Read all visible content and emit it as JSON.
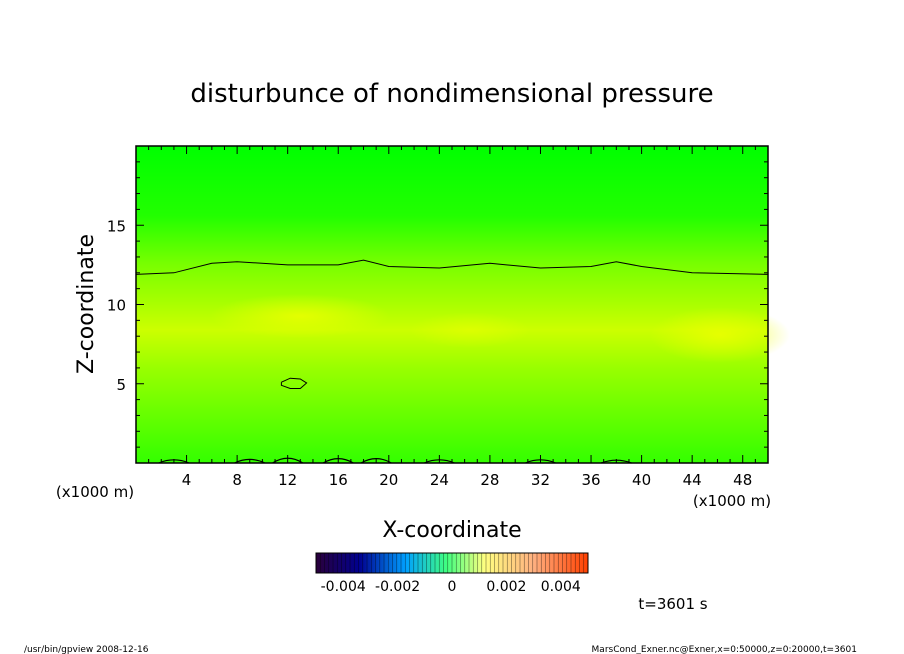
{
  "chart_data": {
    "type": "heatmap",
    "title": "disturbunce of nondimensional pressure",
    "xlabel": "X-coordinate",
    "ylabel": "Z-coordinate",
    "x_unit": "(x1000 m)",
    "y_unit": "(x1000 m)",
    "xlim": [
      0,
      50
    ],
    "ylim": [
      0,
      20
    ],
    "x_ticks": [
      "4",
      "8",
      "12",
      "16",
      "20",
      "24",
      "28",
      "32",
      "36",
      "40",
      "44",
      "48"
    ],
    "y_ticks": [
      "5",
      "10",
      "15"
    ],
    "x_tick_values": [
      4,
      8,
      12,
      16,
      20,
      24,
      28,
      32,
      36,
      40,
      44,
      48
    ],
    "y_tick_values": [
      5,
      10,
      15
    ],
    "colorbar": {
      "range": [
        -0.005,
        0.005
      ],
      "tick_labels": [
        "-0.004",
        "-0.002",
        "0",
        "0.002",
        "0.004"
      ]
    },
    "contours": [
      {
        "level": 0,
        "points": [
          [
            0,
            11.9
          ],
          [
            3,
            12.0
          ],
          [
            6,
            12.6
          ],
          [
            8,
            12.7
          ],
          [
            12,
            12.5
          ],
          [
            16,
            12.5
          ],
          [
            18,
            12.8
          ],
          [
            20,
            12.4
          ],
          [
            24,
            12.3
          ],
          [
            28,
            12.6
          ],
          [
            32,
            12.3
          ],
          [
            36,
            12.4
          ],
          [
            38,
            12.7
          ],
          [
            40,
            12.4
          ],
          [
            44,
            12.0
          ],
          [
            50,
            11.9
          ]
        ]
      },
      {
        "level": 0,
        "points": [
          [
            11.5,
            5.1
          ],
          [
            12.2,
            5.35
          ],
          [
            13.0,
            5.3
          ],
          [
            13.5,
            5.05
          ],
          [
            13.0,
            4.7
          ],
          [
            12.2,
            4.7
          ],
          [
            11.5,
            4.9
          ],
          [
            11.5,
            5.1
          ]
        ]
      }
    ],
    "time_label": "t=3601 s"
  },
  "footer": {
    "left": "/usr/bin/gpview   2008-12-16",
    "right": "MarsCond_Exner.nc@Exner,x=0:50000,z=0:20000,t=3601"
  },
  "colors": {
    "field_top": "#00ff00",
    "field_mid": "#ccff00",
    "field_bottom": "#33ff00",
    "colorbar_stops": [
      "#2a003a",
      "#000090",
      "#00a0ff",
      "#40ff80",
      "#ffff80",
      "#ffb080",
      "#ff4000"
    ]
  }
}
